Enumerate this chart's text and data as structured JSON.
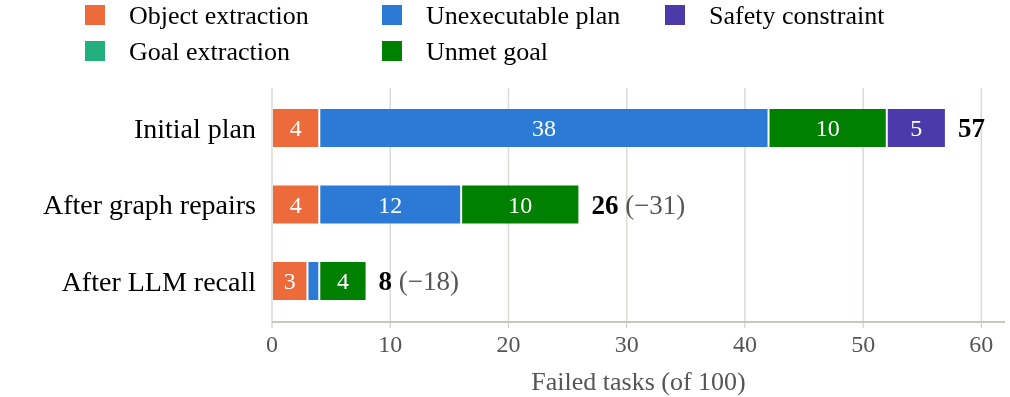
{
  "chart_data": {
    "type": "bar",
    "orientation": "horizontal",
    "stacked": true,
    "categories": [
      "Initial plan",
      "After graph repairs",
      "After LLM recall"
    ],
    "series": [
      {
        "name": "Object extraction",
        "color": "#ed6a3a",
        "values": [
          4,
          4,
          3
        ],
        "value_labels": [
          "4",
          "4",
          "3"
        ]
      },
      {
        "name": "Goal extraction",
        "color": "#22b07d",
        "values": [
          null,
          null,
          null
        ]
      },
      {
        "name": "Unexecutable plan",
        "color": "#2b7bd6",
        "values": [
          38,
          12,
          1
        ],
        "value_labels": [
          "38",
          "12",
          null
        ]
      },
      {
        "name": "Unmet goal",
        "color": "#008000",
        "values": [
          10,
          10,
          4
        ],
        "value_labels": [
          "10",
          "10",
          "4"
        ]
      },
      {
        "name": "Safety constraint",
        "color": "#4b3aaa",
        "values": [
          5,
          null,
          null
        ],
        "value_labels": [
          "5",
          null,
          null
        ]
      }
    ],
    "totals": [
      "57",
      "26 (−31)",
      "8 (−18)"
    ],
    "xlabel": "Failed tasks (of 100)",
    "xlim": [
      0,
      62
    ],
    "xticks": [
      0,
      10,
      20,
      30,
      40,
      50,
      60
    ],
    "grid": "x",
    "legend": "top"
  }
}
